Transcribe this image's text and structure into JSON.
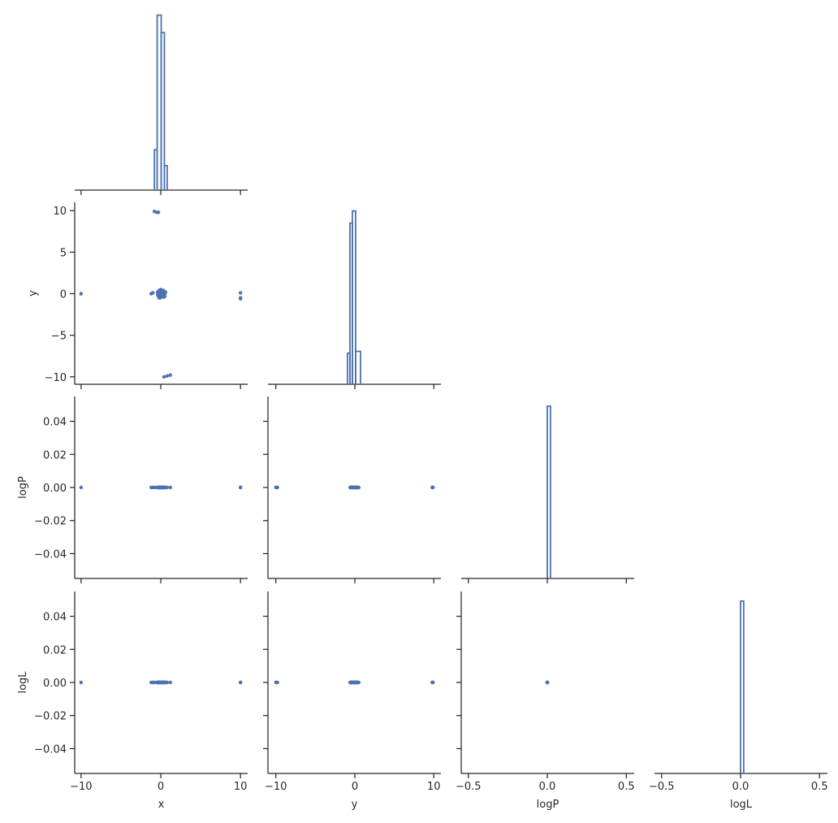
{
  "chart_data": {
    "type": "pairplot",
    "color": "#4c72b0",
    "variables": [
      {
        "name": "x",
        "values": [
          -10,
          10,
          10,
          10,
          -0.8,
          -0.5,
          -0.3,
          0.4,
          0.8,
          1.2,
          -1.0,
          -1.2,
          -0.4,
          -0.3,
          -0.2,
          -0.1,
          0,
          0.1,
          0.2,
          0.3,
          0.4,
          0.5,
          -0.3,
          -0.1,
          0.1,
          0.3,
          0.5,
          -0.2,
          0,
          0.2,
          0.4,
          -0.4,
          0.6,
          0,
          0.2,
          -0.2
        ],
        "xlim": [
          -10.8,
          10.9
        ],
        "xticks": [
          {
            "value": -10,
            "label": "−10"
          },
          0,
          10
        ],
        "hist": {
          "bins": [
            -0.8,
            -0.45,
            0.05,
            0.45,
            0.8
          ],
          "counts": [
            23,
            100,
            90,
            14
          ],
          "ylim": [
            0,
            104
          ]
        }
      },
      {
        "name": "y",
        "values": [
          0,
          0.1,
          -0.5,
          -0.6,
          9.9,
          9.8,
          9.8,
          -10,
          -9.9,
          -9.8,
          0.1,
          0,
          0.2,
          -0.3,
          0.4,
          -0.5,
          0.5,
          -0.4,
          0.3,
          -0.2,
          0.1,
          0,
          -0.1,
          0.2,
          -0.2,
          0.4,
          -0.3,
          -0.5,
          -0.1,
          0,
          -0.4,
          -0.1,
          0.2,
          0.3,
          -0.3,
          0.1
        ],
        "xlim": [
          -11.0,
          10.9
        ],
        "ylim": [
          -10.9,
          11.0
        ],
        "xticks": [
          {
            "value": -10,
            "label": "−10"
          },
          0,
          10
        ],
        "yticks": [
          {
            "value": -10,
            "label": "−10"
          },
          {
            "value": -5,
            "label": "−5"
          },
          0,
          5,
          10
        ],
        "hist": {
          "bins": [
            -0.93,
            -0.62,
            -0.31,
            0.1,
            0.72
          ],
          "counts": [
            18,
            93,
            100,
            19
          ],
          "ylim": [
            0,
            105
          ]
        }
      },
      {
        "name": "logP",
        "values": [
          0,
          0,
          0,
          0,
          0,
          0,
          0,
          0,
          0,
          0,
          0,
          0,
          0,
          0,
          0,
          0,
          0,
          0,
          0,
          0,
          0,
          0,
          0,
          0,
          0,
          0,
          0,
          0,
          0,
          0,
          0,
          0,
          0,
          0,
          0,
          0
        ],
        "xlim": [
          -0.545,
          0.55
        ],
        "ylim": [
          -0.055,
          0.055
        ],
        "xticks": [
          {
            "value": -0.5,
            "label": "−0.5"
          },
          {
            "value": 0,
            "label": "0.0"
          },
          0.5
        ],
        "yticks": [
          {
            "value": -0.04,
            "label": "−0.04"
          },
          {
            "value": -0.02,
            "label": "−0.02"
          },
          {
            "value": 0,
            "label": "0.00"
          },
          0.02,
          0.04
        ],
        "hist": {
          "bins": [
            0,
            0.02
          ],
          "counts": [
            100
          ],
          "ylim": [
            0,
            105.6
          ]
        }
      },
      {
        "name": "logL",
        "values": [
          0,
          0,
          0,
          0,
          0,
          0,
          0,
          0,
          0,
          0,
          0,
          0,
          0,
          0,
          0,
          0,
          0,
          0,
          0,
          0,
          0,
          0,
          0,
          0,
          0,
          0,
          0,
          0,
          0,
          0,
          0,
          0,
          0,
          0,
          0,
          0
        ],
        "xlim": [
          -0.545,
          0.55
        ],
        "ylim": [
          -0.055,
          0.055
        ],
        "xticks": [
          {
            "value": -0.5,
            "label": "−0.5"
          },
          {
            "value": 0,
            "label": "0.0"
          },
          0.5
        ],
        "yticks": [
          {
            "value": -0.04,
            "label": "−0.04"
          },
          {
            "value": -0.02,
            "label": "−0.02"
          },
          {
            "value": 0,
            "label": "0.00"
          },
          0.02,
          0.04
        ],
        "hist": {
          "bins": [
            0,
            0.02
          ],
          "counts": [
            100
          ],
          "ylim": [
            0,
            105.6
          ]
        }
      }
    ]
  }
}
